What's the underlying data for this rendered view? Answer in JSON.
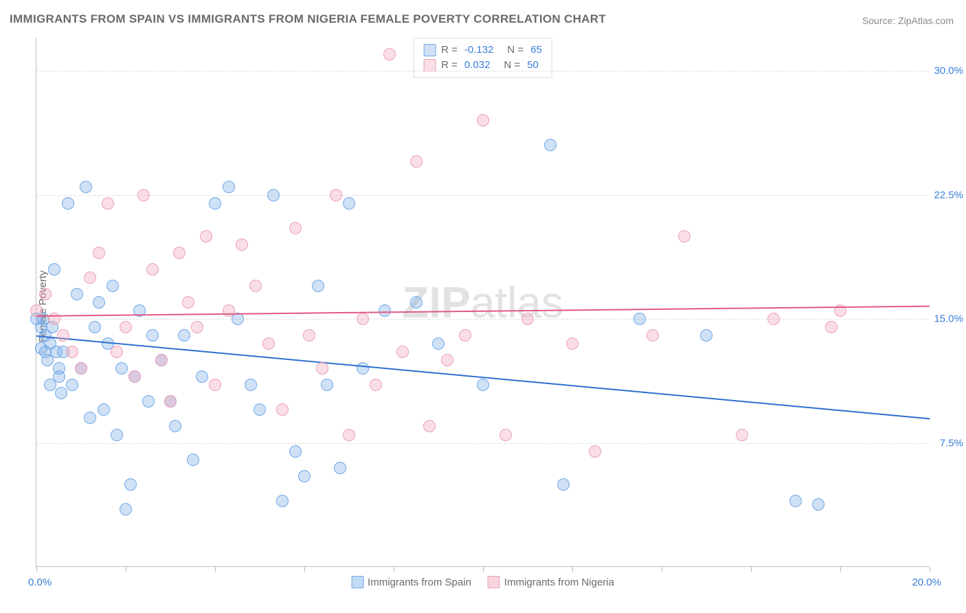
{
  "title": "IMMIGRANTS FROM SPAIN VS IMMIGRANTS FROM NIGERIA FEMALE POVERTY CORRELATION CHART",
  "source": "Source: ZipAtlas.com",
  "y_axis_label": "Female Poverty",
  "watermark_bold": "ZIP",
  "watermark_rest": "atlas",
  "chart": {
    "type": "scatter",
    "background_color": "#ffffff",
    "grid_color": "#dcdcdc",
    "axis_color": "#bdbdbd",
    "tick_label_color": "#3b7dd8",
    "label_color": "#6a6a6a",
    "xlim": [
      0,
      20
    ],
    "ylim": [
      0,
      32
    ],
    "x_ticks": [
      0,
      2,
      4,
      6,
      8,
      10,
      12,
      14,
      16,
      18,
      20
    ],
    "x_tick_label_left": "0.0%",
    "x_tick_label_right": "20.0%",
    "y_grid": [
      {
        "v": 7.5,
        "label": "7.5%"
      },
      {
        "v": 15.0,
        "label": "15.0%"
      },
      {
        "v": 22.5,
        "label": "22.5%"
      },
      {
        "v": 30.0,
        "label": "30.0%"
      }
    ],
    "marker_radius": 9,
    "series": [
      {
        "name": "Immigrants from Spain",
        "fill": "rgba(120,170,230,0.35)",
        "stroke": "#6fa8e8",
        "line_color": "#2e6fd0",
        "R_label": "R =",
        "R_value": "-0.132",
        "N_label": "N =",
        "N_value": "65",
        "trend": {
          "y_at_x0": 14.0,
          "y_at_xmax": 9.0
        },
        "points": [
          [
            0.0,
            15.0
          ],
          [
            0.1,
            13.2
          ],
          [
            0.1,
            14.5
          ],
          [
            0.15,
            15.0
          ],
          [
            0.2,
            13.0
          ],
          [
            0.2,
            14.0
          ],
          [
            0.25,
            12.5
          ],
          [
            0.3,
            13.5
          ],
          [
            0.3,
            11.0
          ],
          [
            0.35,
            14.5
          ],
          [
            0.4,
            18.0
          ],
          [
            0.45,
            13.0
          ],
          [
            0.5,
            12.0
          ],
          [
            0.5,
            11.5
          ],
          [
            0.55,
            10.5
          ],
          [
            0.6,
            13.0
          ],
          [
            0.7,
            22.0
          ],
          [
            0.8,
            11.0
          ],
          [
            0.9,
            16.5
          ],
          [
            1.0,
            12.0
          ],
          [
            1.1,
            23.0
          ],
          [
            1.2,
            9.0
          ],
          [
            1.3,
            14.5
          ],
          [
            1.4,
            16.0
          ],
          [
            1.5,
            9.5
          ],
          [
            1.6,
            13.5
          ],
          [
            1.7,
            17.0
          ],
          [
            1.8,
            8.0
          ],
          [
            1.9,
            12.0
          ],
          [
            2.0,
            3.5
          ],
          [
            2.1,
            5.0
          ],
          [
            2.2,
            11.5
          ],
          [
            2.3,
            15.5
          ],
          [
            2.5,
            10.0
          ],
          [
            2.6,
            14.0
          ],
          [
            2.8,
            12.5
          ],
          [
            3.0,
            10.0
          ],
          [
            3.1,
            8.5
          ],
          [
            3.3,
            14.0
          ],
          [
            3.5,
            6.5
          ],
          [
            3.7,
            11.5
          ],
          [
            4.0,
            22.0
          ],
          [
            4.3,
            23.0
          ],
          [
            4.5,
            15.0
          ],
          [
            4.8,
            11.0
          ],
          [
            5.0,
            9.5
          ],
          [
            5.3,
            22.5
          ],
          [
            5.5,
            4.0
          ],
          [
            5.8,
            7.0
          ],
          [
            6.0,
            5.5
          ],
          [
            6.3,
            17.0
          ],
          [
            6.5,
            11.0
          ],
          [
            6.8,
            6.0
          ],
          [
            7.0,
            22.0
          ],
          [
            7.3,
            12.0
          ],
          [
            7.8,
            15.5
          ],
          [
            8.5,
            16.0
          ],
          [
            9.0,
            13.5
          ],
          [
            10.0,
            11.0
          ],
          [
            11.5,
            25.5
          ],
          [
            11.8,
            5.0
          ],
          [
            13.5,
            15.0
          ],
          [
            15.0,
            14.0
          ],
          [
            17.0,
            4.0
          ],
          [
            17.5,
            3.8
          ]
        ]
      },
      {
        "name": "Immigrants from Nigeria",
        "fill": "rgba(240,160,180,0.35)",
        "stroke": "#eaa0b5",
        "line_color": "#e05a85",
        "R_label": "R =",
        "R_value": "0.032",
        "N_label": "N =",
        "N_value": "50",
        "trend": {
          "y_at_x0": 15.2,
          "y_at_xmax": 15.8
        },
        "points": [
          [
            0.0,
            15.5
          ],
          [
            0.2,
            16.5
          ],
          [
            0.4,
            15.0
          ],
          [
            0.6,
            14.0
          ],
          [
            0.8,
            13.0
          ],
          [
            1.0,
            12.0
          ],
          [
            1.2,
            17.5
          ],
          [
            1.4,
            19.0
          ],
          [
            1.6,
            22.0
          ],
          [
            1.8,
            13.0
          ],
          [
            2.0,
            14.5
          ],
          [
            2.2,
            11.5
          ],
          [
            2.4,
            22.5
          ],
          [
            2.6,
            18.0
          ],
          [
            2.8,
            12.5
          ],
          [
            3.0,
            10.0
          ],
          [
            3.2,
            19.0
          ],
          [
            3.4,
            16.0
          ],
          [
            3.6,
            14.5
          ],
          [
            3.8,
            20.0
          ],
          [
            4.0,
            11.0
          ],
          [
            4.3,
            15.5
          ],
          [
            4.6,
            19.5
          ],
          [
            4.9,
            17.0
          ],
          [
            5.2,
            13.5
          ],
          [
            5.5,
            9.5
          ],
          [
            5.8,
            20.5
          ],
          [
            6.1,
            14.0
          ],
          [
            6.4,
            12.0
          ],
          [
            6.7,
            22.5
          ],
          [
            7.0,
            8.0
          ],
          [
            7.3,
            15.0
          ],
          [
            7.6,
            11.0
          ],
          [
            7.9,
            31.0
          ],
          [
            8.2,
            13.0
          ],
          [
            8.5,
            24.5
          ],
          [
            8.8,
            8.5
          ],
          [
            9.2,
            12.5
          ],
          [
            9.6,
            14.0
          ],
          [
            10.0,
            27.0
          ],
          [
            10.5,
            8.0
          ],
          [
            11.0,
            15.0
          ],
          [
            12.0,
            13.5
          ],
          [
            12.5,
            7.0
          ],
          [
            13.8,
            14.0
          ],
          [
            14.5,
            20.0
          ],
          [
            15.8,
            8.0
          ],
          [
            16.5,
            15.0
          ],
          [
            17.8,
            14.5
          ],
          [
            18.0,
            15.5
          ]
        ]
      }
    ]
  },
  "bottom_legend": [
    {
      "swatch_fill": "rgba(120,170,230,0.45)",
      "swatch_stroke": "#6fa8e8",
      "label": "Immigrants from Spain"
    },
    {
      "swatch_fill": "rgba(240,160,180,0.45)",
      "swatch_stroke": "#eaa0b5",
      "label": "Immigrants from Nigeria"
    }
  ]
}
